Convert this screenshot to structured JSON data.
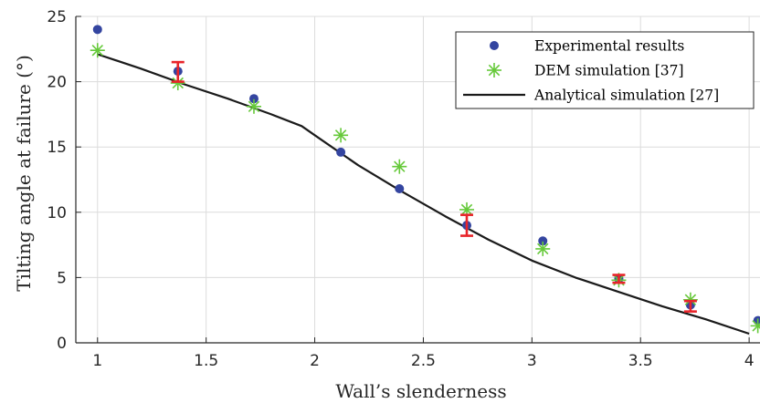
{
  "chart_data": {
    "type": "scatter",
    "xlabel": "Wall’s slenderness",
    "ylabel": "Tilting angle at failure (°)",
    "xlim": [
      0.9,
      4.05
    ],
    "ylim": [
      0,
      25
    ],
    "x_ticks": [
      1,
      1.5,
      2,
      2.5,
      3,
      3.5,
      4
    ],
    "x_tick_labels": [
      "1",
      "1.5",
      "2",
      "2.5",
      "3",
      "3.5",
      "4"
    ],
    "y_ticks": [
      0,
      5,
      10,
      15,
      20,
      25
    ],
    "y_tick_labels": [
      "0",
      "5",
      "10",
      "15",
      "20",
      "25"
    ],
    "grid": true,
    "legend_position": "top-right",
    "series": [
      {
        "name": "Experimental results",
        "type": "scatter",
        "marker": "dot",
        "color": "#3445a0",
        "points": [
          [
            1.0,
            24.0
          ],
          [
            1.37,
            20.8
          ],
          [
            1.72,
            18.7
          ],
          [
            2.12,
            14.6
          ],
          [
            2.39,
            11.8
          ],
          [
            2.7,
            9.0
          ],
          [
            3.05,
            7.8
          ],
          [
            3.4,
            4.9
          ],
          [
            3.73,
            2.9
          ],
          [
            4.04,
            1.7
          ]
        ]
      },
      {
        "name": "DEM simulation [37]",
        "type": "scatter",
        "marker": "asterisk",
        "color": "#66c93a",
        "points": [
          [
            1.0,
            22.4
          ],
          [
            1.37,
            19.9
          ],
          [
            1.72,
            18.1
          ],
          [
            2.12,
            15.9
          ],
          [
            2.39,
            13.5
          ],
          [
            2.7,
            10.2
          ],
          [
            3.05,
            7.2
          ],
          [
            3.4,
            4.8
          ],
          [
            3.73,
            3.3
          ],
          [
            4.04,
            1.3
          ]
        ]
      },
      {
        "name": "Analytical simulation [27]",
        "type": "line",
        "color": "#1a1a1a",
        "points": [
          [
            1.0,
            22.1
          ],
          [
            1.2,
            21.0
          ],
          [
            1.4,
            19.8
          ],
          [
            1.6,
            18.7
          ],
          [
            1.8,
            17.5
          ],
          [
            1.94,
            16.6
          ],
          [
            2.0,
            15.9
          ],
          [
            2.2,
            13.6
          ],
          [
            2.4,
            11.6
          ],
          [
            2.6,
            9.7
          ],
          [
            2.8,
            7.9
          ],
          [
            3.0,
            6.3
          ],
          [
            3.2,
            5.0
          ],
          [
            3.4,
            3.9
          ],
          [
            3.6,
            2.8
          ],
          [
            3.8,
            1.8
          ],
          [
            4.0,
            0.7
          ]
        ]
      }
    ],
    "error_bars": {
      "color": "#e8242a",
      "items": [
        {
          "x": 1.37,
          "low": 20.0,
          "high": 21.5
        },
        {
          "x": 2.7,
          "low": 8.2,
          "high": 9.8
        },
        {
          "x": 3.4,
          "low": 4.6,
          "high": 5.2
        },
        {
          "x": 3.73,
          "low": 2.4,
          "high": 3.2
        }
      ]
    }
  }
}
